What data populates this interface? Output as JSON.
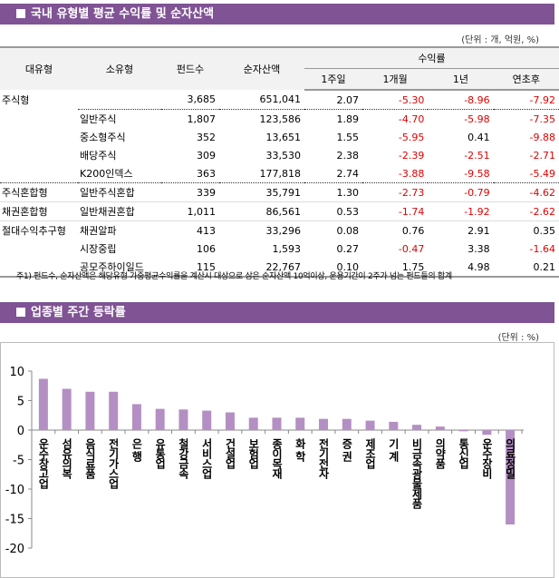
{
  "section1": {
    "title": "국내 유형별 평균 수익률 및 순자산액",
    "unit": "(단위 : 개, 억원, %)"
  },
  "table": {
    "headers": {
      "major": "대유형",
      "minor": "소유형",
      "funds": "펀드수",
      "assets": "순자산액",
      "returns": "수익률",
      "w1": "1주일",
      "m1": "1개월",
      "y1": "1년",
      "ytd": "연초후"
    },
    "rows": [
      [
        "주식형",
        "",
        "3,685",
        "651,041",
        "2.07",
        "-5.30",
        "-8.96",
        "-7.92"
      ],
      [
        "",
        "일반주식",
        "1,807",
        "123,586",
        "1.89",
        "-4.70",
        "-5.98",
        "-7.35"
      ],
      [
        "",
        "중소형주식",
        "352",
        "13,651",
        "1.55",
        "-5.95",
        "0.41",
        "-9.88"
      ],
      [
        "",
        "배당주식",
        "309",
        "33,530",
        "2.38",
        "-2.39",
        "-2.51",
        "-2.71"
      ],
      [
        "",
        "K200인덱스",
        "363",
        "177,818",
        "2.74",
        "-3.88",
        "-9.58",
        "-5.49"
      ],
      [
        "주식혼합형",
        "일반주식혼합",
        "339",
        "35,791",
        "1.30",
        "-2.73",
        "-0.79",
        "-4.62"
      ],
      [
        "채권혼합형",
        "일반채권혼합",
        "1,011",
        "86,561",
        "0.53",
        "-1.74",
        "-1.92",
        "-2.62"
      ],
      [
        "절대수익추구형",
        "채권알파",
        "413",
        "33,296",
        "0.08",
        "0.76",
        "2.91",
        "0.35"
      ],
      [
        "",
        "시장중립",
        "106",
        "1,593",
        "0.27",
        "-0.47",
        "3.38",
        "-1.64"
      ],
      [
        "",
        "공모주하이일드",
        "115",
        "22,767",
        "0.10",
        "1.75",
        "4.98",
        "0.21"
      ]
    ],
    "note": "주1) 펀드수, 순자산액은 해당유형 가중평균수익률을 계산시 대상으로 삼은 순자산액 10억이상, 운용기간이 2주가 넘는 펀드들의 합계",
    "negative_color": "#e00000"
  },
  "section2": {
    "title": "업종별 주간 등락률",
    "unit": "(단위 : %)"
  },
  "chart_data": {
    "type": "bar",
    "categories": [
      "운수창고업",
      "섬유의복",
      "음식료품",
      "전기가스업",
      "은행",
      "유통업",
      "철강금속",
      "서비스업",
      "건설업",
      "보험업",
      "종이목재",
      "화학",
      "전기전자",
      "증권",
      "제조업",
      "기계",
      "비금속광물제품",
      "의약품",
      "통신업",
      "운수장비",
      "의료정밀"
    ],
    "values": [
      8.7,
      7.0,
      6.5,
      6.5,
      4.4,
      3.6,
      3.5,
      3.3,
      3.0,
      2.1,
      2.1,
      2.1,
      1.9,
      1.9,
      1.6,
      1.4,
      0.9,
      0.6,
      -0.2,
      -0.8,
      -16.0
    ],
    "yticks": [
      10,
      5,
      0,
      -5,
      -10,
      -15,
      -20
    ],
    "ylim": [
      -20,
      10
    ],
    "grid": false,
    "bar_color": "#b48fc3",
    "accent": "#7f5394"
  }
}
